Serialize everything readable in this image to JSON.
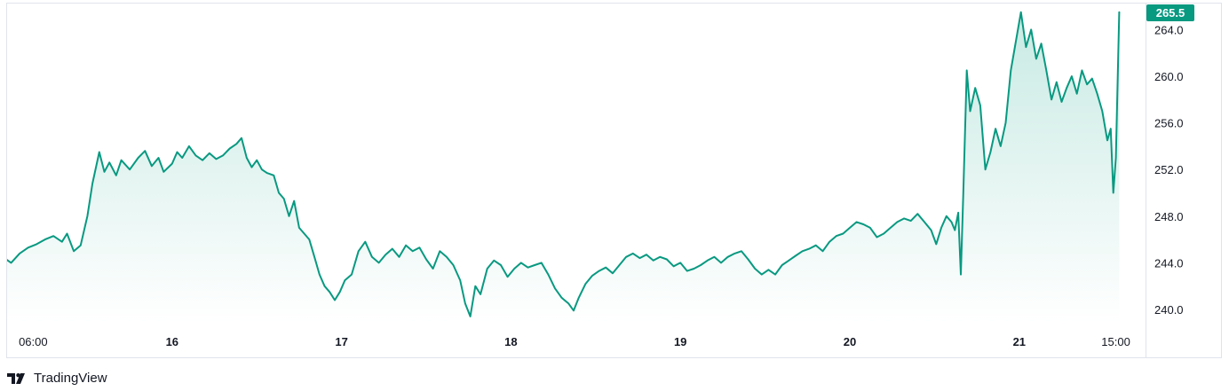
{
  "chart_data": {
    "type": "area",
    "title": "",
    "xlabel": "",
    "ylabel": "",
    "line_color": "#089981",
    "fill_color_top": "#c6e9e2",
    "fill_color_bottom": "#ffffff",
    "last_price": "265.5",
    "ylim": [
      238.8,
      266.5
    ],
    "y_ticks": [
      "240.0",
      "244.0",
      "248.0",
      "252.0",
      "256.0",
      "260.0",
      "264.0"
    ],
    "x_ticks": [
      {
        "label": "06:00",
        "t": 0.18,
        "bold": false
      },
      {
        "label": "16",
        "t": 1.0,
        "bold": true
      },
      {
        "label": "17",
        "t": 2.0,
        "bold": true
      },
      {
        "label": "18",
        "t": 3.0,
        "bold": true
      },
      {
        "label": "19",
        "t": 4.0,
        "bold": true
      },
      {
        "label": "20",
        "t": 5.0,
        "bold": true
      },
      {
        "label": "21",
        "t": 6.0,
        "bold": true
      },
      {
        "label": "15:00",
        "t": 6.57,
        "bold": false
      }
    ],
    "x_range_days": [
      -0.07,
      6.65
    ],
    "grid": false,
    "series": [
      {
        "points": [
          [
            -0.07,
            244.2
          ],
          [
            0.0,
            244.5
          ],
          [
            0.05,
            244.0
          ],
          [
            0.1,
            244.8
          ],
          [
            0.15,
            245.3
          ],
          [
            0.2,
            245.6
          ],
          [
            0.25,
            246.0
          ],
          [
            0.3,
            246.3
          ],
          [
            0.35,
            245.8
          ],
          [
            0.38,
            246.5
          ],
          [
            0.42,
            245.0
          ],
          [
            0.46,
            245.5
          ],
          [
            0.5,
            248.0
          ],
          [
            0.53,
            250.8
          ],
          [
            0.57,
            253.5
          ],
          [
            0.6,
            251.8
          ],
          [
            0.63,
            252.6
          ],
          [
            0.67,
            251.5
          ],
          [
            0.7,
            252.8
          ],
          [
            0.75,
            252.0
          ],
          [
            0.8,
            253.0
          ],
          [
            0.84,
            253.6
          ],
          [
            0.88,
            252.3
          ],
          [
            0.92,
            253.0
          ],
          [
            0.95,
            251.8
          ],
          [
            1.0,
            252.5
          ],
          [
            1.03,
            253.5
          ],
          [
            1.06,
            253.0
          ],
          [
            1.1,
            254.0
          ],
          [
            1.14,
            253.2
          ],
          [
            1.18,
            252.8
          ],
          [
            1.22,
            253.4
          ],
          [
            1.26,
            252.9
          ],
          [
            1.3,
            253.2
          ],
          [
            1.34,
            253.8
          ],
          [
            1.38,
            254.2
          ],
          [
            1.41,
            254.7
          ],
          [
            1.44,
            253.0
          ],
          [
            1.47,
            252.2
          ],
          [
            1.5,
            252.8
          ],
          [
            1.53,
            252.0
          ],
          [
            1.56,
            251.7
          ],
          [
            1.6,
            251.5
          ],
          [
            1.63,
            250.0
          ],
          [
            1.66,
            249.5
          ],
          [
            1.69,
            248.0
          ],
          [
            1.72,
            249.3
          ],
          [
            1.75,
            247.0
          ],
          [
            1.78,
            246.5
          ],
          [
            1.81,
            246.0
          ],
          [
            1.84,
            244.5
          ],
          [
            1.87,
            243.0
          ],
          [
            1.9,
            242.0
          ],
          [
            1.93,
            241.5
          ],
          [
            1.96,
            240.8
          ],
          [
            1.99,
            241.5
          ],
          [
            2.02,
            242.5
          ],
          [
            2.06,
            243.0
          ],
          [
            2.1,
            245.0
          ],
          [
            2.14,
            245.8
          ],
          [
            2.18,
            244.5
          ],
          [
            2.22,
            244.0
          ],
          [
            2.26,
            244.7
          ],
          [
            2.3,
            245.2
          ],
          [
            2.34,
            244.5
          ],
          [
            2.38,
            245.5
          ],
          [
            2.42,
            245.0
          ],
          [
            2.46,
            245.3
          ],
          [
            2.5,
            244.3
          ],
          [
            2.54,
            243.5
          ],
          [
            2.58,
            245.0
          ],
          [
            2.62,
            244.5
          ],
          [
            2.66,
            243.8
          ],
          [
            2.7,
            242.5
          ],
          [
            2.73,
            240.5
          ],
          [
            2.76,
            239.4
          ],
          [
            2.79,
            242.0
          ],
          [
            2.82,
            241.3
          ],
          [
            2.86,
            243.5
          ],
          [
            2.9,
            244.2
          ],
          [
            2.94,
            243.8
          ],
          [
            2.98,
            242.8
          ],
          [
            3.02,
            243.5
          ],
          [
            3.06,
            244.0
          ],
          [
            3.1,
            243.6
          ],
          [
            3.14,
            243.8
          ],
          [
            3.18,
            244.0
          ],
          [
            3.22,
            243.0
          ],
          [
            3.26,
            241.8
          ],
          [
            3.3,
            241.0
          ],
          [
            3.34,
            240.5
          ],
          [
            3.37,
            239.9
          ],
          [
            3.4,
            241.0
          ],
          [
            3.44,
            242.2
          ],
          [
            3.48,
            242.9
          ],
          [
            3.52,
            243.3
          ],
          [
            3.56,
            243.6
          ],
          [
            3.6,
            243.1
          ],
          [
            3.64,
            243.8
          ],
          [
            3.68,
            244.5
          ],
          [
            3.72,
            244.8
          ],
          [
            3.76,
            244.4
          ],
          [
            3.8,
            244.7
          ],
          [
            3.84,
            244.2
          ],
          [
            3.88,
            244.5
          ],
          [
            3.92,
            244.3
          ],
          [
            3.96,
            243.7
          ],
          [
            4.0,
            244.0
          ],
          [
            4.04,
            243.3
          ],
          [
            4.08,
            243.5
          ],
          [
            4.12,
            243.8
          ],
          [
            4.16,
            244.2
          ],
          [
            4.2,
            244.5
          ],
          [
            4.24,
            244.0
          ],
          [
            4.28,
            244.5
          ],
          [
            4.32,
            244.8
          ],
          [
            4.36,
            245.0
          ],
          [
            4.4,
            244.3
          ],
          [
            4.44,
            243.5
          ],
          [
            4.48,
            243.0
          ],
          [
            4.52,
            243.4
          ],
          [
            4.56,
            243.0
          ],
          [
            4.6,
            243.8
          ],
          [
            4.64,
            244.2
          ],
          [
            4.68,
            244.6
          ],
          [
            4.72,
            245.0
          ],
          [
            4.76,
            245.2
          ],
          [
            4.8,
            245.5
          ],
          [
            4.84,
            245.0
          ],
          [
            4.88,
            245.8
          ],
          [
            4.92,
            246.3
          ],
          [
            4.96,
            246.5
          ],
          [
            5.0,
            247.0
          ],
          [
            5.04,
            247.5
          ],
          [
            5.08,
            247.3
          ],
          [
            5.12,
            247.0
          ],
          [
            5.16,
            246.2
          ],
          [
            5.2,
            246.5
          ],
          [
            5.24,
            247.0
          ],
          [
            5.28,
            247.5
          ],
          [
            5.32,
            247.8
          ],
          [
            5.36,
            247.6
          ],
          [
            5.4,
            248.2
          ],
          [
            5.44,
            247.5
          ],
          [
            5.48,
            246.8
          ],
          [
            5.51,
            245.6
          ],
          [
            5.54,
            247.0
          ],
          [
            5.57,
            248.0
          ],
          [
            5.6,
            247.5
          ],
          [
            5.62,
            246.8
          ],
          [
            5.64,
            248.3
          ],
          [
            5.655,
            243.0
          ],
          [
            5.67,
            250.0
          ],
          [
            5.69,
            260.5
          ],
          [
            5.71,
            257.0
          ],
          [
            5.74,
            259.0
          ],
          [
            5.77,
            257.5
          ],
          [
            5.8,
            252.0
          ],
          [
            5.83,
            253.5
          ],
          [
            5.86,
            255.5
          ],
          [
            5.89,
            254.0
          ],
          [
            5.92,
            256.0
          ],
          [
            5.95,
            260.5
          ],
          [
            5.98,
            263.0
          ],
          [
            6.01,
            265.5
          ],
          [
            6.04,
            262.5
          ],
          [
            6.07,
            264.0
          ],
          [
            6.1,
            261.5
          ],
          [
            6.13,
            262.8
          ],
          [
            6.16,
            260.5
          ],
          [
            6.19,
            258.0
          ],
          [
            6.22,
            259.5
          ],
          [
            6.25,
            257.8
          ],
          [
            6.28,
            259.0
          ],
          [
            6.31,
            260.0
          ],
          [
            6.34,
            258.5
          ],
          [
            6.37,
            260.5
          ],
          [
            6.4,
            259.3
          ],
          [
            6.43,
            259.8
          ],
          [
            6.46,
            258.5
          ],
          [
            6.49,
            257.0
          ],
          [
            6.52,
            254.5
          ],
          [
            6.54,
            255.5
          ],
          [
            6.555,
            250.0
          ],
          [
            6.57,
            253.0
          ],
          [
            6.59,
            265.5
          ]
        ]
      }
    ]
  },
  "brand": {
    "name": "TradingView"
  }
}
